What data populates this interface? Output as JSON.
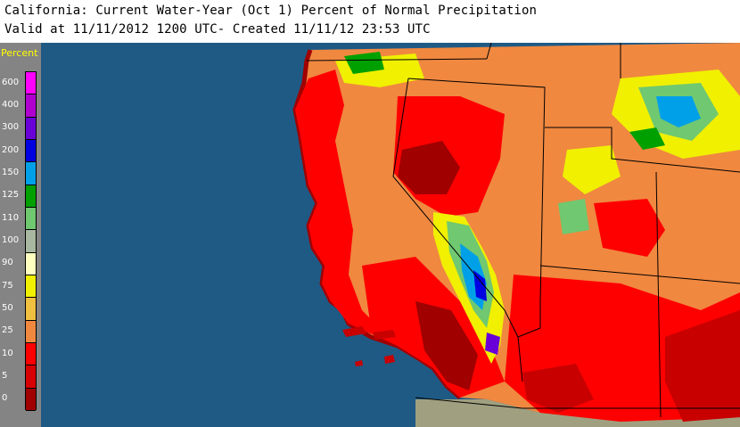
{
  "header": {
    "title": "California: Current Water-Year (Oct 1) Percent of Normal Precipitation",
    "subtitle": "Valid at 11/11/2012 1200 UTC- Created 11/11/12 23:53 UTC"
  },
  "legend": {
    "title": "Percent",
    "classes": [
      {
        "label": "600",
        "color": "#ff00ff"
      },
      {
        "label": "400",
        "color": "#b000d0"
      },
      {
        "label": "300",
        "color": "#6a00d8"
      },
      {
        "label": "200",
        "color": "#0000e0"
      },
      {
        "label": "150",
        "color": "#00a0e8"
      },
      {
        "label": "125",
        "color": "#00a000"
      },
      {
        "label": "110",
        "color": "#70c870"
      },
      {
        "label": "100",
        "color": "#a8b8a0"
      },
      {
        "label": "90",
        "color": "#ffffc0"
      },
      {
        "label": "75",
        "color": "#f0f000"
      },
      {
        "label": "50",
        "color": "#f0c040"
      },
      {
        "label": "25",
        "color": "#f08840"
      },
      {
        "label": "10",
        "color": "#ff0000"
      },
      {
        "label": "5",
        "color": "#d80000"
      },
      {
        "label": "0",
        "color": "#a00000"
      }
    ]
  },
  "colors": {
    "ocean": "#1f5a85",
    "land_base": "#f08840",
    "dry": "#ff0000",
    "very_dry": "#c80000",
    "extreme_dry": "#a00000",
    "near_normal": "#f0c040",
    "normal": "#f0f000",
    "wet": "#00a000",
    "very_wet": "#00a0e8",
    "extreme_wet": "#0000e0",
    "mexico": "#a0a080"
  }
}
